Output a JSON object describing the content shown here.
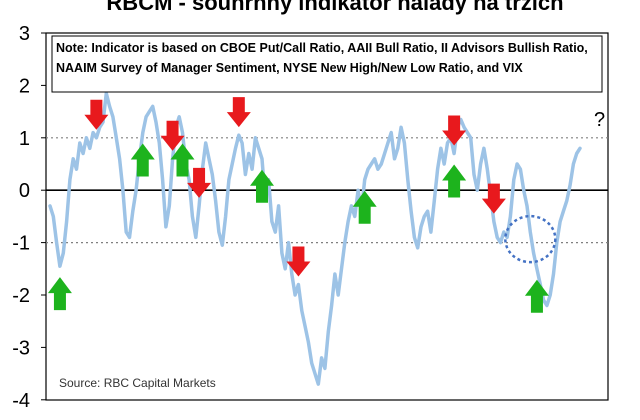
{
  "chart_data": {
    "type": "line",
    "title": "RBCM - souhrnný indikátor nálady na trzích",
    "note_line1": "Note: Indicator is based on CBOE Put/Call Ratio, AAII Bull Ratio, II Advisors Bullish Ratio,",
    "note_line2": "NAAIM Survey of Manager Sentiment, NYSE New High/New Low Ratio, and VIX",
    "source": "Source: RBC Capital Markets",
    "question_mark": "?",
    "ylim": [
      -4,
      3
    ],
    "y_ticks": [
      3,
      2,
      1,
      0,
      -1,
      -2,
      -3,
      -4
    ],
    "y_tick_labels": [
      "3",
      "2",
      "1",
      "0",
      "-1",
      "-2",
      "-3",
      "-4"
    ],
    "reference_lines": [
      1,
      0,
      -1
    ],
    "grid": false,
    "series": [
      {
        "color": "#9dc3e6",
        "x": [
          0,
          1,
          2,
          3,
          4,
          5,
          6,
          7,
          8,
          9,
          10,
          11,
          12,
          13,
          14,
          15,
          16,
          17,
          18,
          19,
          20,
          21,
          22,
          23,
          24,
          25,
          26,
          27,
          28,
          29,
          30,
          31,
          32,
          33,
          34,
          35,
          36,
          37,
          38,
          39,
          40,
          41,
          42,
          43,
          44,
          45,
          46,
          47,
          48,
          49,
          50,
          51,
          52,
          53,
          54,
          55,
          56,
          57,
          58,
          59,
          60,
          61,
          62,
          63,
          64,
          65,
          66,
          67,
          68,
          69,
          70,
          71,
          72,
          73,
          74,
          75,
          76,
          77,
          78,
          79,
          80,
          81,
          82,
          83,
          84,
          85,
          86,
          87,
          88,
          89,
          90,
          91,
          92,
          93,
          94,
          95,
          96,
          97,
          98,
          99,
          100,
          101,
          102,
          103,
          104,
          105,
          106,
          107,
          108,
          109,
          110,
          111,
          112,
          113,
          114,
          115,
          116,
          117,
          118,
          119,
          120,
          121,
          122,
          123,
          124,
          125,
          126,
          127,
          128,
          129,
          130,
          131,
          132,
          133,
          134,
          135,
          136,
          137,
          138,
          139,
          140,
          141,
          142,
          143,
          144,
          145,
          146,
          147,
          148,
          149,
          150,
          151,
          152,
          153,
          154,
          155,
          156,
          157,
          158,
          159,
          160
        ],
        "values": [
          -0.3,
          -0.5,
          -1.0,
          -1.45,
          -1.2,
          -0.6,
          0.2,
          0.6,
          0.4,
          0.9,
          0.7,
          1.0,
          0.8,
          1.1,
          1.0,
          1.2,
          1.3,
          1.85,
          1.6,
          1.4,
          1.0,
          0.6,
          0.0,
          -0.8,
          -0.9,
          -0.4,
          0.0,
          0.6,
          1.1,
          1.4,
          1.5,
          1.6,
          1.3,
          0.9,
          0.2,
          -0.7,
          -0.3,
          0.6,
          1.2,
          1.4,
          1.1,
          0.5,
          0.2,
          -0.5,
          -0.9,
          -0.3,
          0.4,
          0.9,
          0.6,
          0.3,
          -0.2,
          -0.8,
          -1.05,
          -0.5,
          0.2,
          0.5,
          0.8,
          1.05,
          0.9,
          0.3,
          0.7,
          0.4,
          1.0,
          0.8,
          0.6,
          -0.2,
          0.2,
          -0.6,
          -0.8,
          -0.3,
          -1.2,
          -1.5,
          -1.0,
          -1.6,
          -2.0,
          -1.8,
          -2.3,
          -2.6,
          -2.9,
          -3.3,
          -3.5,
          -3.7,
          -3.2,
          -3.4,
          -2.7,
          -2.2,
          -1.6,
          -2.0,
          -1.5,
          -1.0,
          -0.6,
          -0.3,
          -0.5,
          0.0,
          -0.4,
          0.2,
          0.4,
          0.5,
          0.6,
          0.4,
          0.5,
          0.7,
          0.9,
          1.1,
          0.6,
          0.8,
          1.2,
          0.9,
          0.2,
          -0.4,
          -0.9,
          -1.1,
          -0.7,
          -0.5,
          -0.4,
          -0.8,
          -0.2,
          0.4,
          0.8,
          0.5,
          0.9,
          1.0,
          0.7,
          1.2,
          1.35,
          1.2,
          1.1,
          1.0,
          0.3,
          0.0,
          0.5,
          0.8,
          0.4,
          -0.1,
          -0.6,
          -0.9,
          -1.0,
          -0.8,
          -0.9,
          -0.5,
          0.2,
          0.5,
          0.4,
          0.0,
          -0.3,
          -0.8,
          -1.2,
          -1.5,
          -1.8,
          -2.1,
          -2.2,
          -2.0,
          -1.6,
          -1.0,
          -0.6,
          -0.4,
          -0.2,
          0.1,
          0.5,
          0.7,
          0.8
        ]
      }
    ],
    "down_arrows_at_x": [
      14,
      37,
      45,
      57,
      75,
      122,
      134
    ],
    "up_arrows_at_x": [
      3,
      28,
      40,
      64,
      95,
      122,
      147
    ],
    "circled_x": 145,
    "colors": {
      "line": "#9dc3e6",
      "down_arrow": "#e8191d",
      "up_arrow": "#1db31d",
      "circle": "#4472c4",
      "reference_line": "#808080",
      "note_box": "#000000"
    }
  }
}
